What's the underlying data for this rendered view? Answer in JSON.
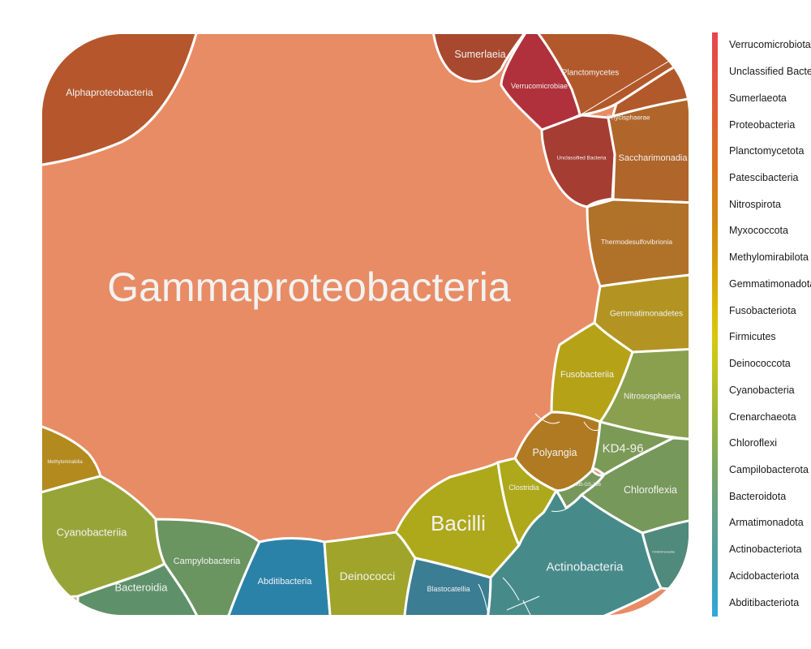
{
  "chart_data": {
    "type": "treemap",
    "title": "",
    "legend": {
      "position": "right",
      "items": [
        {
          "name": "Verrucomicrobiota",
          "color": "#e8434f"
        },
        {
          "name": "Unclassified Bacteria",
          "color": "#e54e44"
        },
        {
          "name": "Sumerlaeota",
          "color": "#e2573a"
        },
        {
          "name": "Proteobacteria",
          "color": "#df5f31"
        },
        {
          "name": "Planctomycetota",
          "color": "#dc6a28"
        },
        {
          "name": "Patescibacteria",
          "color": "#d97420"
        },
        {
          "name": "Nitrospirota",
          "color": "#d67f18"
        },
        {
          "name": "Myxococcota",
          "color": "#d38a12"
        },
        {
          "name": "Methylomirabilota",
          "color": "#d5980d"
        },
        {
          "name": "Gemmatimonadota",
          "color": "#d8a809"
        },
        {
          "name": "Fusobacteriota",
          "color": "#dbbb06"
        },
        {
          "name": "Firmicutes",
          "color": "#d6c80c"
        },
        {
          "name": "Deinococcota",
          "color": "#c4c51c"
        },
        {
          "name": "Cyanobacteria",
          "color": "#aebd2e"
        },
        {
          "name": "Crenarchaeota",
          "color": "#98b53f"
        },
        {
          "name": "Chloroflexi",
          "color": "#86ac53"
        },
        {
          "name": "Campilobacterota",
          "color": "#76a56c"
        },
        {
          "name": "Bacteroidota",
          "color": "#6ba17f"
        },
        {
          "name": "Armatimonadota",
          "color": "#5c9f92"
        },
        {
          "name": "Actinobacteriota",
          "color": "#4a9fa6"
        },
        {
          "name": "Acidobacteriota",
          "color": "#3aa3c0"
        },
        {
          "name": "Abditibacteriota",
          "color": "#34a6dc"
        }
      ]
    },
    "cells": [
      {
        "label": "Gammaproteobacteria",
        "phylum": "Proteobacteria",
        "color": "#e88c65"
      },
      {
        "label": "Alphaproteobacteria",
        "phylum": "Proteobacteria",
        "color": "#b5562c"
      },
      {
        "label": "Sumerlaeia",
        "phylum": "Sumerlaeota",
        "color": "#a8482e"
      },
      {
        "label": "Verrucomicrobiae",
        "phylum": "Verrucomicrobiota",
        "color": "#b0313b"
      },
      {
        "label": "Planctomycetes",
        "phylum": "Planctomycetota",
        "color": "#b2592b"
      },
      {
        "label": "Phycisphaerae",
        "phylum": "Planctomycetota",
        "color": "#b2592b"
      },
      {
        "label": "Unclassified Bacteria",
        "phylum": "Unclassified Bacteria",
        "color": "#a63d33"
      },
      {
        "label": "Saccharimonadia",
        "phylum": "Patescibacteria",
        "color": "#b0652a"
      },
      {
        "label": "Thermodesulfovibrionia",
        "phylum": "Nitrospirota",
        "color": "#b07228"
      },
      {
        "label": "Gemmatimonadetes",
        "phylum": "Gemmatimonadota",
        "color": "#b39422"
      },
      {
        "label": "Fusobacteriia",
        "phylum": "Fusobacteriota",
        "color": "#b5a217"
      },
      {
        "label": "Nitrososphaeria",
        "phylum": "Crenarchaeota",
        "color": "#8aa04e"
      },
      {
        "label": "Polyangia",
        "phylum": "Myxococcota",
        "color": "#b07a22"
      },
      {
        "label": "KD4-96",
        "phylum": "Chloroflexi",
        "color": "#7b9a55"
      },
      {
        "label": "Chloroflexia",
        "phylum": "Chloroflexi",
        "color": "#76985a"
      },
      {
        "label": "Methylomirabilia",
        "phylum": "Methylomirabilota",
        "color": "#b38a1e"
      },
      {
        "label": "Cyanobacteriia",
        "phylum": "Cyanobacteria",
        "color": "#97a538"
      },
      {
        "label": "Bacteroidia",
        "phylum": "Bacteroidota",
        "color": "#5e916a"
      },
      {
        "label": "Campylobacteria",
        "phylum": "Campilobacterota",
        "color": "#6a9560"
      },
      {
        "label": "Abditibacteria",
        "phylum": "Abditibacteriota",
        "color": "#2b82a8"
      },
      {
        "label": "Deinococci",
        "phylum": "Deinococcota",
        "color": "#a0a42a"
      },
      {
        "label": "Bacilli",
        "phylum": "Firmicutes",
        "color": "#aea81b"
      },
      {
        "label": "Clostridia",
        "phylum": "Firmicutes",
        "color": "#aea81b"
      },
      {
        "label": "Blastocatellia",
        "phylum": "Acidobacteriota",
        "color": "#3b7d92"
      },
      {
        "label": "Actinobacteria",
        "phylum": "Actinobacteriota",
        "color": "#468b8a"
      },
      {
        "label": "Gitt-GS-136",
        "phylum": "Chloroflexi",
        "color": "#76985a"
      },
      {
        "label": "Fimbriimonadia",
        "phylum": "Armatimonadota",
        "color": "#4f8a7c"
      }
    ]
  }
}
